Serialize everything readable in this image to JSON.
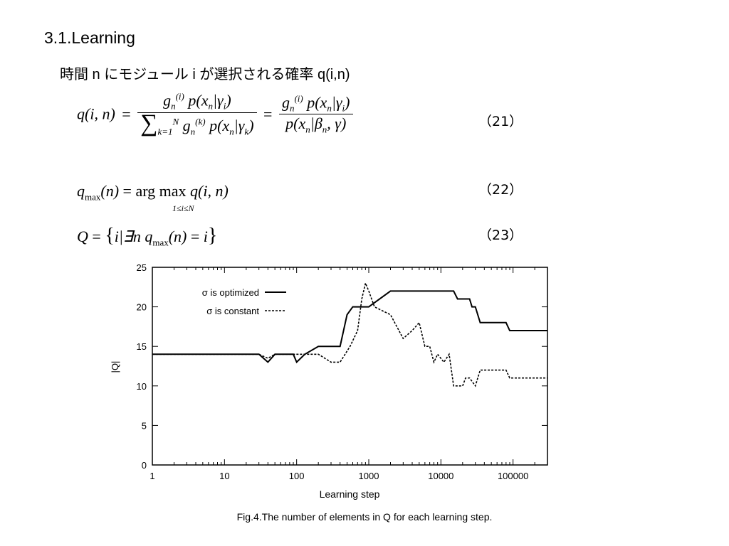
{
  "slide": {
    "heading": "3.1.Learning",
    "subheading": "時間 n にモジュール i が選択される確率 q(i,n)",
    "eq_numbers": [
      "（21）",
      "（22）",
      "（23）"
    ],
    "caption": "Fig.4.The number of elements in Q for each learning step."
  },
  "chart_data": {
    "type": "line",
    "xlabel": "Learning step",
    "ylabel": "|Q|",
    "x_scale": "log",
    "xlim": [
      1,
      300000
    ],
    "ylim": [
      0,
      25
    ],
    "x_ticks": [
      "1",
      "10",
      "100",
      "1000",
      "10000",
      "100000"
    ],
    "y_ticks": [
      "0",
      "5",
      "10",
      "15",
      "20",
      "25"
    ],
    "legend_position": "top-left",
    "grid": false,
    "series": [
      {
        "name": "σ is optimized",
        "style": "solid",
        "color": "#000000",
        "points": [
          [
            1,
            14
          ],
          [
            30,
            14
          ],
          [
            40,
            13
          ],
          [
            50,
            14
          ],
          [
            90,
            14
          ],
          [
            100,
            13
          ],
          [
            130,
            14
          ],
          [
            200,
            15
          ],
          [
            400,
            15
          ],
          [
            500,
            19
          ],
          [
            600,
            20
          ],
          [
            1000,
            20
          ],
          [
            2000,
            22
          ],
          [
            15000,
            22
          ],
          [
            17000,
            21
          ],
          [
            25000,
            21
          ],
          [
            27000,
            20
          ],
          [
            30000,
            20
          ],
          [
            35000,
            18
          ],
          [
            80000,
            18
          ],
          [
            90000,
            17
          ],
          [
            300000,
            17
          ]
        ]
      },
      {
        "name": "σ is constant",
        "style": "dashed",
        "color": "#000000",
        "points": [
          [
            1,
            14
          ],
          [
            30,
            14
          ],
          [
            40,
            13.5
          ],
          [
            50,
            14
          ],
          [
            200,
            14
          ],
          [
            300,
            13
          ],
          [
            400,
            13
          ],
          [
            550,
            15
          ],
          [
            700,
            17
          ],
          [
            800,
            21
          ],
          [
            900,
            23
          ],
          [
            1000,
            22
          ],
          [
            1200,
            20
          ],
          [
            2000,
            19
          ],
          [
            3000,
            16
          ],
          [
            4000,
            17
          ],
          [
            5000,
            18
          ],
          [
            6000,
            15
          ],
          [
            7000,
            15
          ],
          [
            8000,
            13
          ],
          [
            9000,
            14
          ],
          [
            11000,
            13
          ],
          [
            13000,
            14
          ],
          [
            15000,
            10
          ],
          [
            20000,
            10
          ],
          [
            22000,
            11
          ],
          [
            25000,
            11
          ],
          [
            30000,
            10
          ],
          [
            35000,
            12
          ],
          [
            80000,
            12
          ],
          [
            90000,
            11
          ],
          [
            300000,
            11
          ]
        ]
      }
    ]
  }
}
